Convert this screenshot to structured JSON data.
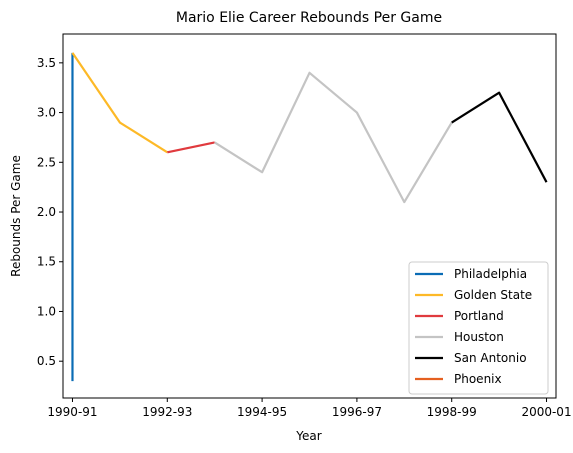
{
  "chart_data": {
    "type": "line",
    "title": "Mario Elie Career Rebounds Per Game",
    "xlabel": "Year",
    "ylabel": "Rebounds Per Game",
    "grid": false,
    "legend_placement": "lower-right",
    "xlim": [
      1989.8,
      2000.2
    ],
    "ylim": [
      0.13,
      3.79
    ],
    "x_ticks": [
      {
        "x": 1990,
        "label": "1990-91"
      },
      {
        "x": 1992,
        "label": "1992-93"
      },
      {
        "x": 1994,
        "label": "1994-95"
      },
      {
        "x": 1996,
        "label": "1996-97"
      },
      {
        "x": 1998,
        "label": "1998-99"
      },
      {
        "x": 2000,
        "label": "2000-01"
      }
    ],
    "y_ticks": [
      0.5,
      1.0,
      1.5,
      2.0,
      2.5,
      3.0,
      3.5
    ],
    "series": [
      {
        "name": "Philadelphia",
        "color": "#0a6cb5",
        "points": [
          [
            1990,
            0.3
          ],
          [
            1990,
            3.6
          ]
        ]
      },
      {
        "name": "Golden State",
        "color": "#fdb927",
        "points": [
          [
            1990,
            3.6
          ],
          [
            1991,
            2.9
          ],
          [
            1992,
            2.6
          ]
        ]
      },
      {
        "name": "Portland",
        "color": "#e03a3e",
        "points": [
          [
            1992,
            2.6
          ],
          [
            1993,
            2.7
          ]
        ]
      },
      {
        "name": "Houston",
        "color": "#c4c4c4",
        "points": [
          [
            1993,
            2.7
          ],
          [
            1994,
            2.4
          ],
          [
            1995,
            3.4
          ],
          [
            1996,
            3.0
          ],
          [
            1997,
            2.1
          ],
          [
            1998,
            2.9
          ]
        ]
      },
      {
        "name": "San Antonio",
        "color": "#000000",
        "points": [
          [
            1998,
            2.9
          ],
          [
            1999,
            3.2
          ],
          [
            2000,
            2.3
          ]
        ]
      },
      {
        "name": "Phoenix",
        "color": "#e56020",
        "points": []
      }
    ]
  }
}
